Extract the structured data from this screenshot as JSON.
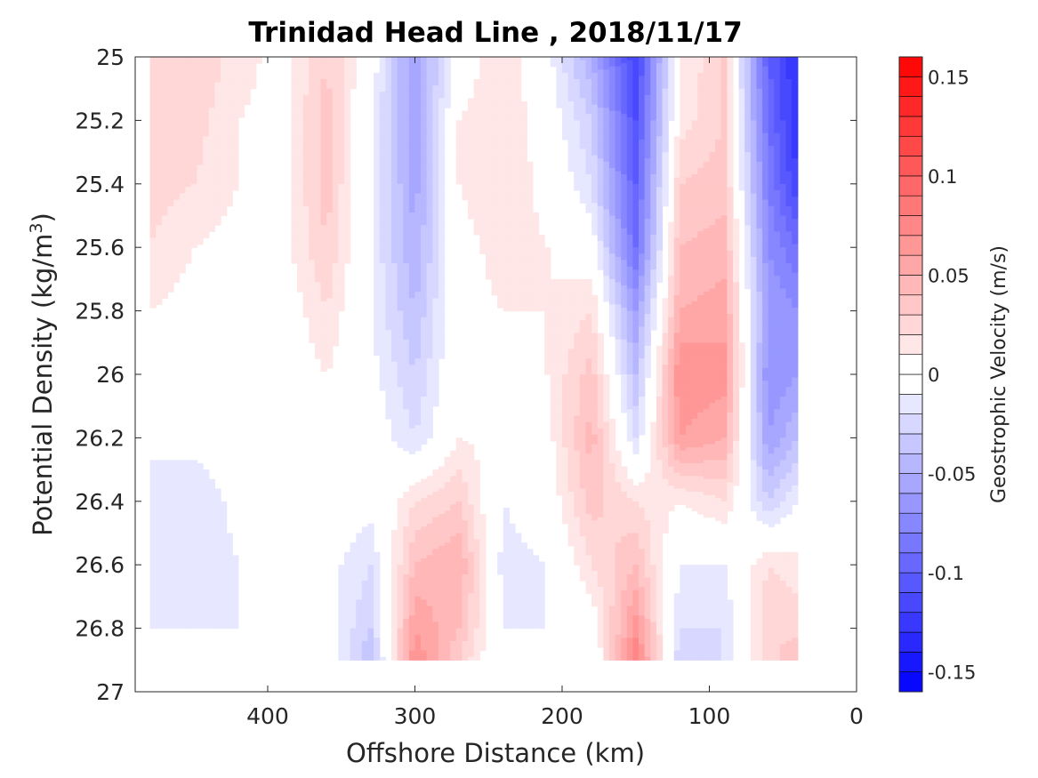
{
  "chart_data": {
    "type": "heatmap",
    "title": "Trinidad Head Line , 2018/11/17",
    "xlabel": "Offshore Distance (km)",
    "ylabel": "Potential Density (kg/m",
    "ylabel_sup": "3",
    "ylabel_close": ")",
    "xlim": [
      490,
      0
    ],
    "ylim": [
      25,
      27
    ],
    "x_ticks": [
      400,
      300,
      200,
      100,
      0
    ],
    "y_ticks": [
      25,
      25.2,
      25.4,
      25.6,
      25.8,
      26,
      26.2,
      26.4,
      26.6,
      26.8,
      27
    ],
    "colorbar": {
      "label": "Geostrophic Velocity (m/s)",
      "range": [
        -0.16,
        0.16
      ],
      "ticks": [
        0.15,
        0.1,
        0.05,
        0,
        -0.05,
        -0.1,
        -0.15
      ],
      "tick_labels": [
        "0.15",
        "0.1",
        "0.05",
        "0",
        "-0.05",
        "-0.1",
        "-0.15"
      ],
      "levels": 32,
      "positive_color": "#ff0000",
      "negative_color": "#0000ff",
      "zero_color": "#ffffff"
    },
    "x_stations": [
      480,
      450,
      420,
      390,
      360,
      330,
      300,
      270,
      240,
      210,
      180,
      150,
      120,
      90,
      60,
      40
    ],
    "y_levels": [
      25,
      25.2,
      25.4,
      25.6,
      25.8,
      26,
      26.2,
      26.4,
      26.6,
      26.8,
      26.9
    ],
    "velocity_grid": [
      [
        0.02,
        0.03,
        0.015,
        0.005,
        0.03,
        0.0,
        -0.06,
        0.0,
        0.02,
        -0.005,
        -0.05,
        -0.12,
        0.01,
        0.03,
        -0.1,
        -0.13
      ],
      [
        0.03,
        0.025,
        0.01,
        0.005,
        0.035,
        -0.01,
        -0.06,
        0.01,
        0.02,
        0.0,
        -0.03,
        -0.11,
        0.015,
        0.03,
        -0.09,
        -0.13
      ],
      [
        0.025,
        0.02,
        0.01,
        0.005,
        0.035,
        -0.01,
        -0.055,
        0.01,
        0.02,
        0.005,
        -0.02,
        -0.1,
        0.03,
        0.035,
        -0.08,
        -0.12
      ],
      [
        0.02,
        0.01,
        0.005,
        0.005,
        0.03,
        -0.01,
        -0.05,
        0.005,
        0.015,
        0.01,
        0.0,
        -0.09,
        0.04,
        0.045,
        -0.07,
        -0.09
      ],
      [
        0.01,
        0.005,
        0.0,
        0.0,
        0.02,
        -0.01,
        -0.04,
        0.005,
        0.01,
        0.01,
        0.02,
        -0.06,
        0.05,
        0.055,
        -0.06,
        -0.07
      ],
      [
        0.005,
        0.005,
        0.0,
        0.0,
        0.01,
        -0.005,
        -0.03,
        0.005,
        0.005,
        0.01,
        0.035,
        -0.04,
        0.07,
        0.065,
        -0.07,
        -0.06
      ],
      [
        -0.01,
        -0.005,
        0.0,
        0.0,
        0.005,
        0.0,
        -0.02,
        0.01,
        0.005,
        0.005,
        0.045,
        -0.02,
        0.06,
        0.05,
        -0.06,
        -0.04
      ],
      [
        -0.01,
        -0.02,
        -0.005,
        0.0,
        0.0,
        -0.005,
        0.02,
        0.03,
        -0.01,
        0.0,
        0.035,
        0.02,
        0.01,
        0.02,
        -0.03,
        -0.01
      ],
      [
        -0.01,
        -0.02,
        -0.01,
        -0.005,
        -0.005,
        -0.02,
        0.04,
        0.05,
        -0.015,
        -0.01,
        0.02,
        0.04,
        -0.01,
        -0.01,
        0.02,
        0.015
      ],
      [
        -0.01,
        -0.01,
        -0.01,
        -0.01,
        -0.005,
        -0.03,
        0.06,
        0.04,
        -0.01,
        -0.01,
        0.0,
        0.065,
        -0.02,
        -0.02,
        0.03,
        0.025
      ],
      [
        -0.005,
        -0.01,
        -0.01,
        -0.01,
        0.0,
        -0.04,
        0.07,
        0.03,
        -0.01,
        -0.005,
        -0.01,
        0.08,
        -0.03,
        -0.02,
        0.025,
        0.04
      ]
    ]
  }
}
